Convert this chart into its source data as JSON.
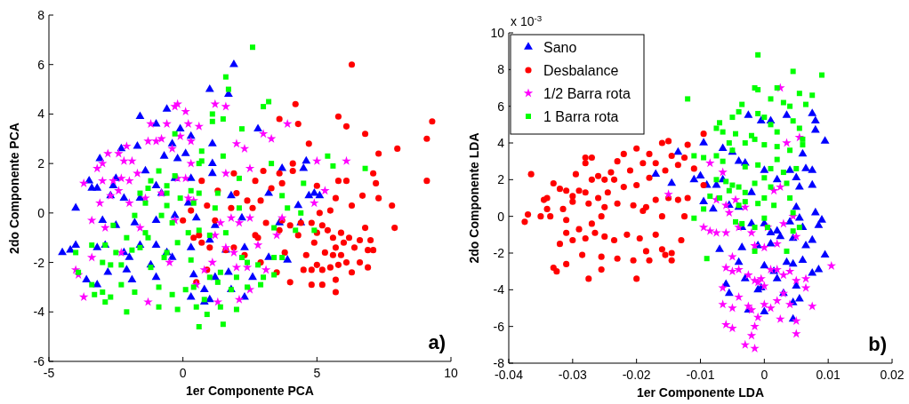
{
  "chart_data": [
    {
      "type": "scatter",
      "xlabel": "1er Componente PCA",
      "ylabel": "2do Componente PCA",
      "xlim": [
        -5,
        10
      ],
      "xticks": [
        -5,
        0,
        5,
        10
      ],
      "ylim": [
        -6,
        8
      ],
      "yticks": [
        -6,
        -4,
        -2,
        0,
        2,
        4,
        6,
        8
      ],
      "annotations": [
        "a)"
      ],
      "series": [
        {
          "color": "#0000ff",
          "marker": "triangle",
          "x": [
            1.9,
            1.0,
            1.7,
            -0.6,
            -1.6,
            -1.0,
            -0.1,
            0.3,
            1.1,
            2.8,
            -1.7,
            -2.3,
            -3.1,
            -0.4,
            -0.7,
            -0.2,
            0.1,
            1.1,
            -1.4,
            -2.5,
            -3.5,
            -3.4,
            -3.2,
            -2.6,
            -1.0,
            -0.3,
            0.3,
            1.1,
            3.7,
            4.6,
            4.5,
            4.9,
            5.1,
            4.7,
            4.3,
            3.2,
            -4.0,
            -2.7,
            -2.2,
            -1.6,
            -0.8,
            0.2,
            1.8,
            -3.0,
            -2.5,
            -1.8,
            -1.0,
            -0.3,
            0.5,
            1.2,
            2.2,
            3.6,
            4.4,
            -4.5,
            -4.2,
            -4.0,
            -3.2,
            -2.9,
            -2.2,
            -1.6,
            -1.0,
            -0.6,
            0.3,
            1.0,
            1.6,
            2.3,
            3.2,
            3.9,
            -2.1,
            -2.8,
            -1.2,
            -1.0,
            -0.4,
            0.4,
            1.2,
            1.7,
            2.6,
            -3.2,
            -1.9,
            0.8,
            1.8,
            2.3,
            0.3,
            1.0,
            0.8,
            -2.0,
            -3.6
          ],
          "values": [
            6.0,
            5.0,
            4.8,
            4.2,
            3.9,
            3.6,
            3.4,
            3.1,
            2.8,
            3.4,
            2.7,
            2.6,
            2.2,
            2.8,
            2.3,
            2.2,
            2.4,
            2.0,
            1.7,
            1.4,
            1.3,
            1.0,
            1.0,
            1.1,
            1.1,
            1.4,
            1.4,
            1.6,
            1.8,
            2.1,
            1.8,
            0.8,
            0.7,
            0.7,
            0.3,
            0.8,
            0.2,
            0.7,
            0.6,
            0.6,
            0.8,
            0.4,
            0.7,
            -0.3,
            -0.5,
            -0.4,
            -0.3,
            -0.1,
            -0.2,
            -0.5,
            -0.2,
            -0.4,
            -0.4,
            -1.6,
            -1.5,
            -1.3,
            -1.4,
            -1.3,
            -1.6,
            -1.3,
            -1.3,
            -1.6,
            -1.4,
            -1.1,
            -1.5,
            -1.4,
            -1.8,
            -1.9,
            -2.3,
            -2.4,
            -2.1,
            -2.6,
            -1.8,
            -2.5,
            -2.6,
            -2.4,
            -2.6,
            -2.9,
            -2.7,
            -3.1,
            -3.1,
            -3.4,
            -3.4,
            -3.5,
            -3.6,
            -1.8,
            -2.7
          ]
        },
        {
          "color": "#ff0000",
          "marker": "circle",
          "x": [
            6.3,
            4.2,
            3.6,
            4.3,
            5.8,
            6.1,
            6.8,
            9.3,
            9.1,
            8.0,
            4.7,
            7.3,
            9.1,
            7.1,
            7.2,
            7.3,
            6.7,
            7.8,
            7.9,
            4.1,
            4.1,
            3.6,
            3.0,
            1.9,
            0.7,
            5.0,
            5.8,
            6.1,
            5.7,
            6.3,
            5.5,
            5.1,
            3.3,
            3.7,
            2.7,
            1.3,
            2.0,
            2.4,
            0.9,
            0.3,
            0.0,
            0.6,
            0.4,
            0.7,
            1.0,
            1.2,
            1.8,
            2.6,
            2.9,
            3.1,
            2.8,
            3.7,
            4.0,
            4.4,
            4.3,
            4.8,
            4.9,
            5.0,
            5.2,
            5.4,
            5.6,
            5.7,
            5.9,
            6.0,
            6.2,
            6.4,
            6.6,
            6.8,
            6.9,
            7.0,
            7.1,
            5.3,
            5.6,
            5.8,
            6.1,
            6.3,
            6.6,
            6.9,
            5.0,
            4.8,
            5.2,
            5.5,
            4.5,
            4.0,
            4.8,
            5.2,
            5.7,
            5.7,
            4.6,
            3.8,
            3.5,
            2.9,
            2.3,
            1.6,
            0.9,
            0.5,
            1.9,
            2.7,
            3.6,
            5.9
          ],
          "values": [
            6.0,
            4.4,
            3.8,
            3.6,
            3.9,
            3.5,
            3.2,
            3.7,
            3.0,
            2.6,
            2.8,
            2.4,
            1.3,
            1.6,
            1.2,
            0.6,
            0.7,
            0.3,
            -0.6,
            2.0,
            1.7,
            1.6,
            1.7,
            1.6,
            1.3,
            1.1,
            1.3,
            1.3,
            0.6,
            0.3,
            0.1,
            0.0,
            1.0,
            1.2,
            1.3,
            0.9,
            0.8,
            0.5,
            0.3,
            0.1,
            -0.3,
            -0.9,
            -1.0,
            -1.2,
            -1.4,
            -0.3,
            0.2,
            0.2,
            0.5,
            -0.4,
            -1.0,
            -0.3,
            -0.5,
            -0.4,
            -0.9,
            -0.4,
            -1.2,
            -0.8,
            -0.5,
            -0.7,
            -1.0,
            -1.4,
            -0.8,
            -1.2,
            -1.0,
            -1.4,
            -1.1,
            -0.6,
            -1.5,
            -1.1,
            -1.5,
            -1.6,
            -1.7,
            -2.1,
            -2.0,
            -2.4,
            -2.0,
            -2.2,
            -2.1,
            -2.3,
            -2.3,
            -2.2,
            -2.3,
            -2.8,
            -2.9,
            -2.9,
            -2.7,
            -3.2,
            -1.7,
            -1.6,
            -2.4,
            -2.0,
            -1.7,
            -1.5,
            -2.3,
            -2.8,
            -1.4,
            -0.9,
            -0.7,
            -1.7
          ]
        },
        {
          "color": "#ff00ff",
          "marker": "star",
          "x": [
            -0.2,
            -0.3,
            0.1,
            1.2,
            1.6,
            3.9,
            -1.2,
            -0.6,
            0.2,
            0.6,
            3.0,
            3.3,
            -1.3,
            -1.0,
            -0.8,
            -0.1,
            0.3,
            -0.4,
            2.0,
            2.3,
            -2.1,
            -2.8,
            -2.4,
            -3.0,
            -3.2,
            -2.2,
            -1.9,
            0.3,
            -2.6,
            -2.3,
            -2.0,
            -1.7,
            -3.7,
            -3.0,
            -0.2,
            0.1,
            1.6,
            2.5,
            5.0,
            6.1,
            5.3,
            -2.7,
            -2.4,
            -3.1,
            -2.0,
            -1.4,
            -0.8,
            0.2,
            0.4,
            4.9,
            -3.4,
            -2.9,
            -1.6,
            -0.3,
            1.4,
            1.8,
            2.1,
            2.5,
            3.7,
            1.2,
            1.6,
            1.9,
            2.8,
            3.5,
            -3.4,
            -2.3,
            -0.5,
            0.8,
            1.1,
            2.0,
            2.4,
            3.1,
            -4.0,
            -3.9,
            -3.7,
            -1.3,
            0.5,
            1.3,
            2.1,
            2.5
          ],
          "values": [
            4.4,
            4.3,
            4.1,
            4.4,
            4.3,
            3.6,
            3.6,
            3.6,
            3.6,
            3.5,
            3.2,
            3.0,
            2.9,
            2.9,
            3.0,
            3.1,
            2.9,
            2.6,
            2.8,
            2.6,
            2.7,
            2.4,
            2.4,
            2.0,
            1.8,
            2.1,
            2.1,
            2.0,
            1.3,
            1.4,
            1.3,
            1.6,
            1.2,
            1.3,
            1.4,
            1.4,
            1.6,
            1.8,
            2.1,
            2.1,
            0.9,
            0.7,
            0.9,
            0.4,
            0.4,
            0.6,
            0.8,
            0.6,
            0.5,
            0.4,
            -0.3,
            -0.6,
            -0.6,
            -0.3,
            -0.4,
            -0.2,
            -0.4,
            -0.2,
            -0.2,
            -0.9,
            -1.4,
            -1.6,
            -1.3,
            -0.9,
            -1.8,
            -1.6,
            -2.0,
            -2.3,
            -2.0,
            -2.2,
            -2.2,
            -2.3,
            -2.3,
            -2.5,
            -3.4,
            -3.6,
            -2.9,
            -3.6,
            -3.5,
            -3.1
          ]
        },
        {
          "color": "#00ff00",
          "marker": "square",
          "x": [
            2.6,
            1.6,
            1.7,
            3.2,
            3.0,
            1.1,
            1.1,
            1.5,
            2.2,
            -0.3,
            0.7,
            1.5,
            3.3,
            5.4,
            5.6,
            6.8,
            0.6,
            0.7,
            -0.9,
            -0.3,
            2.1,
            4.5,
            -1.2,
            -1.3,
            -0.6,
            0.3,
            0.6,
            1.3,
            3.7,
            -0.6,
            -1.6,
            -0.6,
            -0.1,
            0.4,
            1.2,
            2.1,
            4.4,
            3.9,
            -1.4,
            -1.8,
            -0.8,
            -0.4,
            0.2,
            0.6,
            1.6,
            3.4,
            4.2,
            4.9,
            -2.6,
            -1.4,
            -1.3,
            -2.1,
            -1.6,
            -2.9,
            -3.4,
            -4.0,
            -2.5,
            -1.9,
            -0.6,
            -0.2,
            1.0,
            2.2,
            2.4,
            2.8,
            3.4,
            3.7,
            -3.9,
            -3.0,
            -2.7,
            -2.3,
            -1.2,
            -0.7,
            0.3,
            1.0,
            1.4,
            2.0,
            3.0,
            3.4,
            -3.4,
            -3.0,
            -2.7,
            -2.3,
            -1.8,
            -0.9,
            -0.4,
            0.1,
            0.4,
            1.3,
            1.8,
            2.4,
            2.9,
            -3.3,
            -2.9,
            -2.1,
            -0.9,
            -0.2,
            0.5,
            0.8,
            1.4,
            2.0,
            0.9,
            1.5,
            0.6
          ],
          "values": [
            6.7,
            5.5,
            5.0,
            4.5,
            4.3,
            4.0,
            3.7,
            3.8,
            3.4,
            3.2,
            2.5,
            2.3,
            2.0,
            2.3,
            1.9,
            1.8,
            2.0,
            2.1,
            1.7,
            1.5,
            1.4,
            1.2,
            1.3,
            1.0,
            1.1,
            0.9,
            0.8,
            0.8,
            0.7,
            0.8,
            0.8,
            0.3,
            0.6,
            0.4,
            0.2,
            0.2,
            0.0,
            0.2,
            0.4,
            -0.1,
            -0.1,
            -0.4,
            -0.8,
            -0.7,
            -0.8,
            -0.6,
            -0.7,
            -0.7,
            -0.5,
            -0.8,
            -1.0,
            -1.0,
            -1.4,
            -1.3,
            -1.3,
            -1.6,
            -1.6,
            -1.5,
            -1.6,
            -1.2,
            -0.9,
            -1.8,
            -2.0,
            -2.1,
            -1.8,
            -1.8,
            -2.4,
            -2.0,
            -2.1,
            -2.1,
            -2.2,
            -1.8,
            -1.9,
            -2.6,
            -2.4,
            -2.6,
            -2.6,
            -2.5,
            -2.9,
            -3.2,
            -3.4,
            -2.9,
            -3.2,
            -3.0,
            -3.3,
            -3.1,
            -3.0,
            -2.8,
            -3.1,
            -3.0,
            -2.9,
            -3.3,
            -3.6,
            -4.0,
            -3.8,
            -3.9,
            -3.8,
            -3.5,
            -3.8,
            -3.9,
            -4.1,
            -4.5,
            -4.6
          ]
        }
      ]
    },
    {
      "type": "scatter",
      "xlabel": "1er Componente LDA",
      "ylabel": "2do Componente LDA",
      "xlim": [
        -0.04,
        0.02
      ],
      "xticks": [
        -0.04,
        -0.03,
        -0.02,
        -0.01,
        0,
        0.01,
        0.02
      ],
      "ylim": [
        -8,
        10
      ],
      "yticks": [
        -8,
        -6,
        -4,
        -2,
        0,
        2,
        4,
        6,
        8,
        10
      ],
      "legend": "top left",
      "annotations": [
        "x 10$^{-3}$",
        "b)"
      ],
      "series": [
        {
          "name": "Sano",
          "color": "#0000ff",
          "marker": "triangle",
          "x": [
            -0.0095,
            -0.0135,
            -0.017,
            -0.0145,
            -0.011,
            -0.01,
            -0.009,
            -0.0095,
            -0.008,
            -0.0075,
            -0.0065,
            -0.0065,
            -0.005,
            -0.004,
            -0.003,
            -0.0025,
            -0.0005,
            0.001,
            0.0035,
            0.0075,
            0.008,
            0.0095,
            0.008,
            0.006,
            0.0065,
            0.0075,
            0.0075,
            0.005,
            0.0055,
            0.004,
            0.002,
            0.0,
            -0.002,
            -0.004,
            -0.0055,
            -0.0035,
            -0.002,
            0.0,
            0.001,
            0.002,
            0.004,
            0.005,
            0.006,
            0.0055,
            0.008,
            0.009,
            0.0085,
            0.0075,
            0.0065,
            0.0045,
            0.0025,
            0.001,
            -0.001,
            -0.0035,
            -0.007,
            -0.004,
            -0.003,
            -0.006,
            -0.0055,
            -0.0025,
            -0.001,
            0.0,
            0.0015,
            0.002,
            0.0035,
            0.0045,
            0.005,
            0.0055,
            0.0045,
            0.0045,
            0.0,
            0.0075,
            0.0085,
            0.0095,
            0.006,
            -0.0005,
            0.003
          ],
          "values": [
            4.0,
            3.5,
            2.3,
            1.8,
            2.0,
            2.2,
            1.7,
            0.8,
            0.4,
            1.7,
            2.0,
            3.7,
            3.5,
            3.0,
            2.9,
            5.5,
            5.2,
            5.2,
            5.5,
            5.6,
            5.2,
            4.1,
            4.7,
            3.4,
            2.6,
            2.5,
            1.7,
            2.1,
            1.6,
            2.5,
            2.0,
            2.5,
            1.3,
            0.5,
            0.6,
            -0.6,
            -0.4,
            -0.4,
            -0.9,
            -0.8,
            -0.3,
            0.5,
            -0.6,
            -0.1,
            0.2,
            -0.2,
            -0.5,
            -1.3,
            -1.6,
            -1.2,
            -1.1,
            -1.5,
            -1.6,
            -1.7,
            -1.8,
            -2.5,
            -3.4,
            -3.7,
            -4.2,
            -5.1,
            -4.0,
            -2.7,
            -3.0,
            -3.4,
            -2.5,
            -2.6,
            -3.8,
            -4.5,
            -4.7,
            -5.6,
            -5.2,
            -3.1,
            -2.9,
            -2.1,
            -2.4,
            -3.9,
            -4.2
          ]
        },
        {
          "name": "Desbalance",
          "color": "#ff0000",
          "marker": "circle",
          "x": [
            -0.0365,
            -0.037,
            -0.0375,
            -0.035,
            -0.0345,
            -0.034,
            -0.034,
            -0.0335,
            -0.033,
            -0.032,
            -0.031,
            -0.0315,
            -0.031,
            -0.03,
            -0.029,
            -0.028,
            -0.027,
            -0.028,
            -0.0295,
            -0.027,
            -0.026,
            -0.025,
            -0.024,
            -0.0235,
            -0.022,
            -0.023,
            -0.021,
            -0.02,
            -0.019,
            -0.018,
            -0.017,
            -0.016,
            -0.015,
            -0.0145,
            -0.012,
            -0.0095,
            -0.0125,
            -0.011,
            -0.0135,
            -0.0155,
            -0.018,
            -0.02,
            -0.022,
            -0.0245,
            -0.026,
            -0.028,
            -0.03,
            -0.0275,
            -0.025,
            -0.023,
            -0.0205,
            -0.019,
            -0.017,
            -0.015,
            -0.0135,
            -0.012,
            -0.0095,
            -0.0125,
            -0.016,
            -0.0185,
            -0.0255,
            -0.027,
            -0.029,
            -0.031,
            -0.032,
            -0.03,
            -0.028,
            -0.0265,
            -0.025,
            -0.0235,
            -0.0215,
            -0.0195,
            -0.017,
            -0.016,
            -0.0145,
            -0.013,
            -0.0145,
            -0.018,
            -0.0185,
            -0.0205,
            -0.023,
            -0.0255,
            -0.0285,
            -0.031,
            -0.0325,
            -0.033,
            -0.0255,
            -0.0275,
            -0.02,
            -0.0155
          ],
          "values": [
            2.3,
            0.1,
            -0.3,
            0.0,
            0.9,
            1.0,
            0.4,
            0.0,
            1.8,
            1.5,
            1.4,
            0.4,
            -0.2,
            0.8,
            1.4,
            3.2,
            3.2,
            2.9,
            2.3,
            2.0,
            2.2,
            2.0,
            2.4,
            2.0,
            3.4,
            3.0,
            2.5,
            3.7,
            2.9,
            3.4,
            2.9,
            4.0,
            4.1,
            3.3,
            3.9,
            4.5,
            3.2,
            2.6,
            2.8,
            2.5,
            2.1,
            1.7,
            1.6,
            1.3,
            1.0,
            1.3,
            1.1,
            0.7,
            0.5,
            0.7,
            0.6,
            0.3,
            0.9,
            1.0,
            0.9,
            1.0,
            1.7,
            0.0,
            0.0,
            0.5,
            0.0,
            -0.4,
            -0.7,
            -0.9,
            -1.5,
            -1.3,
            -1.2,
            -0.9,
            -1.1,
            -1.3,
            -1.0,
            -1.2,
            -1.0,
            -1.8,
            -2.0,
            -1.3,
            -2.4,
            -2.4,
            -1.9,
            -2.4,
            -2.3,
            -2.2,
            -2.1,
            -2.6,
            -3.0,
            -2.8,
            -2.9,
            -3.4,
            -3.4,
            -2.1
          ]
        },
        {
          "name": "1/2 Barra rota",
          "color": "#ff00ff",
          "marker": "star",
          "x": [
            0.0025,
            0.0055,
            0.0035,
            -0.0085,
            -0.0065,
            -0.015,
            -0.0075,
            -0.006,
            -0.0055,
            -0.0045,
            -0.003,
            0.0015,
            0.0025,
            0.0045,
            -0.0095,
            -0.0085,
            -0.0075,
            -0.006,
            -0.004,
            -0.002,
            0.0005,
            0.003,
            0.005,
            -0.0015,
            0.0,
            0.002,
            -0.005,
            -0.006,
            -0.005,
            -0.004,
            -0.0025,
            -0.0015,
            -0.001,
            -0.0005,
            0.0,
            0.001,
            0.002,
            0.003,
            0.004,
            0.005,
            0.0065,
            0.0065,
            0.0105,
            -0.0065,
            -0.0065,
            -0.005,
            -0.004,
            -0.0025,
            -0.002,
            -0.001,
            0.0,
            0.001,
            0.002,
            0.003,
            0.004,
            0.0025,
            0.0075,
            0.005,
            0.005,
            -0.006,
            -0.005,
            -0.002,
            -0.0015,
            -0.003,
            -0.0015
          ],
          "values": [
            7.0,
            4.3,
            4.0,
            2.9,
            2.4,
            1.2,
            0.9,
            0.6,
            0.2,
            0.9,
            0.5,
            1.4,
            1.6,
            0.0,
            -0.6,
            -0.8,
            -0.9,
            -0.9,
            -0.6,
            -0.9,
            -0.6,
            -0.4,
            -1.1,
            -1.6,
            -1.7,
            -1.5,
            -2.2,
            -2.8,
            -3.0,
            -2.9,
            -3.2,
            -3.5,
            -3.6,
            -3.4,
            -3.8,
            -2.9,
            -2.9,
            -3.2,
            -3.0,
            -3.5,
            -3.4,
            -3.9,
            -2.7,
            -3.9,
            -4.8,
            -5.0,
            -4.4,
            -4.9,
            -5.1,
            -5.5,
            -4.8,
            -5.0,
            -4.6,
            -4.2,
            -4.8,
            -5.6,
            -4.9,
            -5.7,
            -6.4,
            -5.9,
            -6.1,
            -6.5,
            -7.2,
            -7.0,
            -6.0
          ]
        },
        {
          "name": "1 Barra rota",
          "color": "#00ff00",
          "marker": "square",
          "x": [
            -0.001,
            0.0045,
            0.009,
            -0.012,
            -0.0015,
            -0.001,
            0.002,
            0.0055,
            0.0075,
            0.0065,
            0.001,
            0.003,
            0.004,
            -0.0035,
            -0.004,
            -0.005,
            -0.007,
            -0.0075,
            -0.0065,
            -0.0045,
            -0.002,
            -0.001,
            0.0,
            0.001,
            0.002,
            0.0045,
            0.0055,
            0.006,
            0.006,
            0.004,
            0.002,
            0.0,
            -0.0015,
            -0.003,
            -0.0055,
            -0.0075,
            -0.011,
            -0.0095,
            -0.0065,
            -0.005,
            -0.003,
            -0.001,
            0.001,
            0.002,
            0.003,
            0.005,
            -0.0075,
            -0.006,
            -0.005,
            -0.004,
            -0.003,
            -0.0015,
            0.0,
            0.001,
            0.0035,
            0.004,
            -0.0085,
            -0.007,
            -0.0055,
            -0.004,
            -0.003,
            -0.001,
            0.0,
            0.0015,
            0.0045,
            -0.0095,
            -0.011,
            -0.0045,
            -0.0035,
            -0.0015,
            0.0,
            0.0005,
            0.0045,
            0.0055,
            -0.0015,
            0.0035,
            -0.009
          ],
          "values": [
            8.8,
            7.9,
            7.7,
            6.4,
            7.0,
            6.9,
            7.0,
            6.7,
            6.6,
            6.1,
            6.4,
            6.2,
            6.0,
            6.1,
            5.7,
            5.4,
            5.1,
            4.8,
            4.6,
            4.5,
            4.4,
            5.6,
            5.4,
            5.0,
            4.6,
            5.2,
            4.8,
            4.2,
            3.9,
            3.6,
            3.8,
            3.9,
            4.2,
            4.0,
            4.0,
            3.3,
            3.3,
            3.2,
            3.0,
            3.6,
            2.7,
            2.8,
            2.6,
            3.1,
            2.4,
            2.6,
            2.0,
            1.9,
            1.7,
            1.6,
            1.3,
            1.8,
            2.1,
            1.6,
            1.8,
            1.0,
            1.1,
            1.0,
            1.4,
            0.6,
            0.8,
            0.7,
            1.0,
            0.6,
            0.2,
            0.4,
            -0.1,
            -0.3,
            -0.4,
            -0.6,
            -0.1,
            -0.6,
            -0.8,
            -0.6,
            -1.9,
            -1.9,
            -2.3
          ]
        }
      ]
    }
  ]
}
